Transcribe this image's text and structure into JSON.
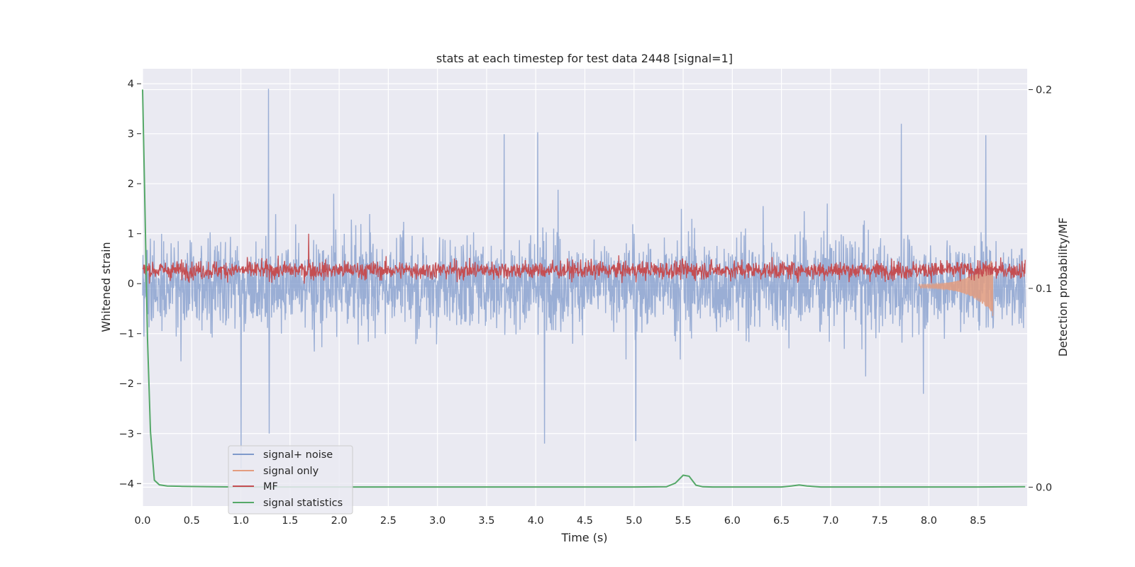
{
  "chart_data": {
    "type": "line",
    "title": "stats at each timestep for test data 2448 [signal=1]",
    "xlabel": "Time (s)",
    "ylabel": "Whitened strain",
    "y2label": "Detection probability/MF",
    "xlim": [
      0.0,
      9.0
    ],
    "ylim": [
      -4.45,
      4.3
    ],
    "y2lim": [
      -0.0095,
      0.2105
    ],
    "grid": true,
    "legend_position": "lower-left",
    "xticks": [
      "0.0",
      "0.5",
      "1.0",
      "1.5",
      "2.0",
      "2.5",
      "3.0",
      "3.5",
      "4.0",
      "4.5",
      "5.0",
      "5.5",
      "6.0",
      "6.5",
      "7.0",
      "7.5",
      "8.0",
      "8.5"
    ],
    "yticks": [
      "4",
      "3",
      "2",
      "1",
      "0",
      "−1",
      "−2",
      "−3",
      "−4"
    ],
    "y2ticks": [
      "0.2",
      "0.1",
      "0.0"
    ],
    "colors": {
      "background": "#eaeaf2",
      "grid": "#ffffff",
      "signal_noise": "#7f9acb",
      "signal_only": "#e39c7f",
      "mf": "#c44e52",
      "signal_statistics": "#55a868"
    },
    "series": [
      {
        "name": "signal+ noise",
        "axis": "left",
        "description_values": {
          "typical_range": [
            -2.5,
            2.4
          ],
          "peaks": [
            {
              "x": 1.28,
              "y": 3.9
            },
            {
              "x": 7.72,
              "y": 3.2
            },
            {
              "x": 8.58,
              "y": 2.97
            },
            {
              "x": 4.02,
              "y": 3.03
            },
            {
              "x": 3.68,
              "y": 2.99
            },
            {
              "x": 1.29,
              "y": -3.0
            },
            {
              "x": 1.0,
              "y": -3.7
            },
            {
              "x": 4.09,
              "y": -3.2
            },
            {
              "x": 5.02,
              "y": -3.15
            }
          ]
        }
      },
      {
        "name": "signal only",
        "axis": "left",
        "description_values": {
          "start_x": 7.9,
          "end_x": 8.65,
          "min_y": -0.65,
          "max_y": 0.15
        }
      },
      {
        "name": "MF",
        "axis": "left",
        "description_values": {
          "typical_range": [
            0.0,
            0.7
          ],
          "max": {
            "x": 1.69,
            "y": 1.0
          }
        }
      },
      {
        "name": "signal statistics",
        "axis": "right",
        "x": [
          0.0,
          0.02,
          0.05,
          0.08,
          0.12,
          0.17,
          0.25,
          0.4,
          0.7,
          1.0,
          2.0,
          3.0,
          4.0,
          5.0,
          5.33,
          5.42,
          5.5,
          5.56,
          5.63,
          5.7,
          5.8,
          6.5,
          6.6,
          6.68,
          6.76,
          6.9,
          7.5,
          8.5,
          8.98
        ],
        "y": [
          0.2,
          0.15,
          0.075,
          0.028,
          0.0035,
          0.0012,
          0.0006,
          0.0004,
          0.0002,
          0.0001,
          0.0001,
          0.0001,
          0.0001,
          0.0001,
          0.0002,
          0.002,
          0.006,
          0.0055,
          0.001,
          0.0002,
          0.0001,
          0.0001,
          0.0006,
          0.0011,
          0.0006,
          0.0001,
          0.0001,
          0.0001,
          0.0002
        ]
      }
    ]
  }
}
